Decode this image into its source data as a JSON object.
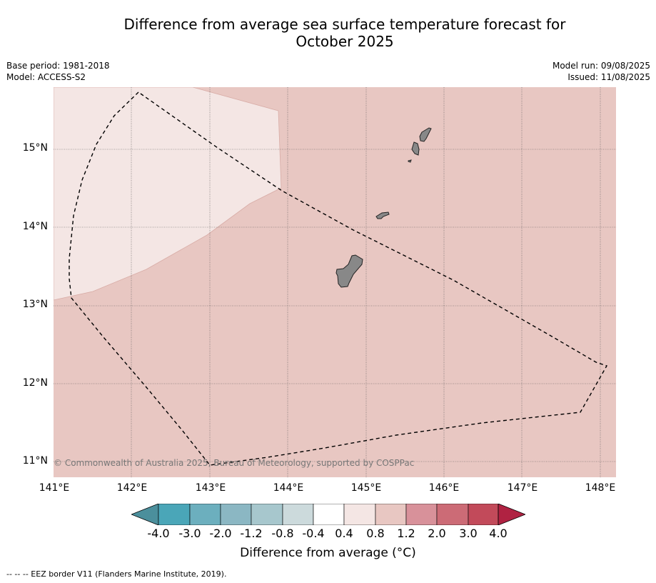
{
  "title_line1": "Difference from average sea surface temperature forecast for",
  "title_line2": "October 2025",
  "meta_left": {
    "base_period": "Base period: 1981-2018",
    "model": "Model: ACCESS-S2"
  },
  "meta_right": {
    "model_run": "Model run: 09/08/2025",
    "issued": "Issued: 11/08/2025"
  },
  "map": {
    "lat_labels": [
      "15°N",
      "14°N",
      "13°N",
      "12°N",
      "11°N"
    ],
    "lon_labels": [
      "141°E",
      "142°E",
      "143°E",
      "144°E",
      "145°E",
      "146°E",
      "147°E",
      "148°E"
    ],
    "copyright": "© Commonwealth of Australia 2025, Bureau of Meteorology, supported by COSPPac",
    "colors": {
      "base_anomaly": "#e8c7c2",
      "light_anomaly": "#f4e6e4",
      "land": "#888888"
    }
  },
  "colorbar": {
    "ticks": [
      "-4.0",
      "-3.0",
      "-2.0",
      "-1.2",
      "-0.8",
      "-0.4",
      "0.4",
      "0.8",
      "1.2",
      "2.0",
      "3.0",
      "4.0"
    ],
    "colors": [
      "#4b8f9c",
      "#4aa6b8",
      "#6cafbe",
      "#8bb7c3",
      "#a7c7cd",
      "#ccdadc",
      "#ffffff",
      "#f4e6e4",
      "#e8c7c2",
      "#d8919a",
      "#cc6b76",
      "#c24a5a",
      "#b02242"
    ],
    "label": "Difference from average (°C)"
  },
  "footer": "--  --  -- EEZ border V11 (Flanders Marine Institute, 2019)."
}
